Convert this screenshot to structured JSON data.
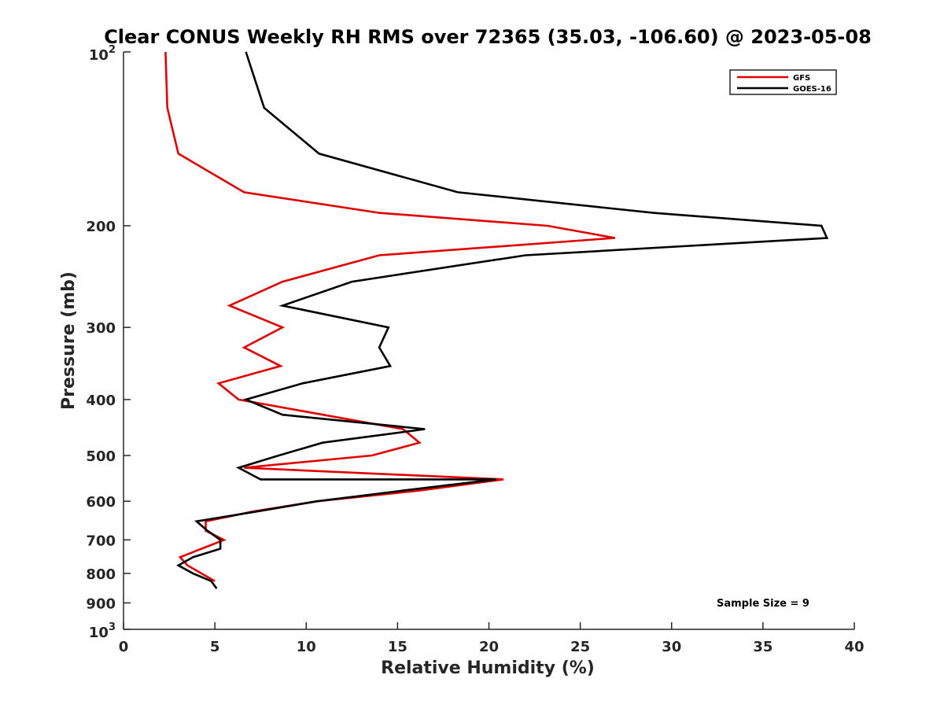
{
  "chart_data": {
    "type": "line",
    "title": "Clear CONUS Weekly RH RMS over 72365 (35.03, -106.60) @ 2023-05-08",
    "xlabel": "Relative Humidity (%)",
    "ylabel": "Pressure (mb)",
    "xlim": [
      0,
      40
    ],
    "ylim": [
      100,
      1000
    ],
    "y_scale": "log",
    "y_reversed": true,
    "grid": false,
    "legend_position": "top-right",
    "annotation": "Sample Size = 9",
    "x_ticks": [
      "0",
      "5",
      "10",
      "15",
      "20",
      "25",
      "30",
      "35",
      "40"
    ],
    "y_ticks": [
      {
        "value": 100,
        "base": "10",
        "exp": "2"
      },
      {
        "value": 200,
        "label": "200"
      },
      {
        "value": 300,
        "label": "300"
      },
      {
        "value": 400,
        "label": "400"
      },
      {
        "value": 500,
        "label": "500"
      },
      {
        "value": 600,
        "label": "600"
      },
      {
        "value": 700,
        "label": "700"
      },
      {
        "value": 800,
        "label": "800"
      },
      {
        "value": 900,
        "label": "900"
      },
      {
        "value": 1000,
        "base": "10",
        "exp": "3"
      }
    ],
    "series": [
      {
        "name": "GFS",
        "color": "#e00000",
        "points": [
          [
            2.3,
            100
          ],
          [
            2.4,
            125
          ],
          [
            3.0,
            150
          ],
          [
            6.6,
            175
          ],
          [
            14.0,
            190
          ],
          [
            23.2,
            200
          ],
          [
            26.9,
            210
          ],
          [
            14.0,
            225
          ],
          [
            8.7,
            250
          ],
          [
            5.8,
            275
          ],
          [
            8.7,
            300
          ],
          [
            6.6,
            325
          ],
          [
            8.6,
            350
          ],
          [
            5.2,
            375
          ],
          [
            6.3,
            400
          ],
          [
            15.3,
            450
          ],
          [
            16.2,
            475
          ],
          [
            13.6,
            500
          ],
          [
            6.6,
            525
          ],
          [
            20.8,
            550
          ],
          [
            16.2,
            575
          ],
          [
            10.6,
            600
          ],
          [
            7.1,
            625
          ],
          [
            4.5,
            650
          ],
          [
            4.5,
            675
          ],
          [
            5.5,
            700
          ],
          [
            3.1,
            750
          ],
          [
            3.5,
            775
          ],
          [
            5.0,
            825
          ]
        ]
      },
      {
        "name": "GOES-16",
        "color": "#000000",
        "points": [
          [
            6.7,
            100
          ],
          [
            7.7,
            125
          ],
          [
            10.7,
            150
          ],
          [
            18.3,
            175
          ],
          [
            29.0,
            190
          ],
          [
            38.2,
            200
          ],
          [
            38.5,
            210
          ],
          [
            22.0,
            225
          ],
          [
            12.5,
            250
          ],
          [
            8.7,
            275
          ],
          [
            14.5,
            300
          ],
          [
            14.0,
            325
          ],
          [
            14.6,
            350
          ],
          [
            9.8,
            375
          ],
          [
            6.7,
            400
          ],
          [
            8.7,
            425
          ],
          [
            16.5,
            450
          ],
          [
            10.9,
            475
          ],
          [
            8.5,
            500
          ],
          [
            6.3,
            525
          ],
          [
            7.5,
            550
          ],
          [
            20.4,
            550
          ],
          [
            15.3,
            575
          ],
          [
            10.6,
            600
          ],
          [
            7.3,
            625
          ],
          [
            4.0,
            650
          ],
          [
            4.6,
            675
          ],
          [
            5.3,
            700
          ],
          [
            5.3,
            725
          ],
          [
            3.8,
            750
          ],
          [
            3.0,
            775
          ],
          [
            3.8,
            800
          ],
          [
            4.8,
            825
          ],
          [
            5.1,
            850
          ]
        ]
      }
    ]
  }
}
